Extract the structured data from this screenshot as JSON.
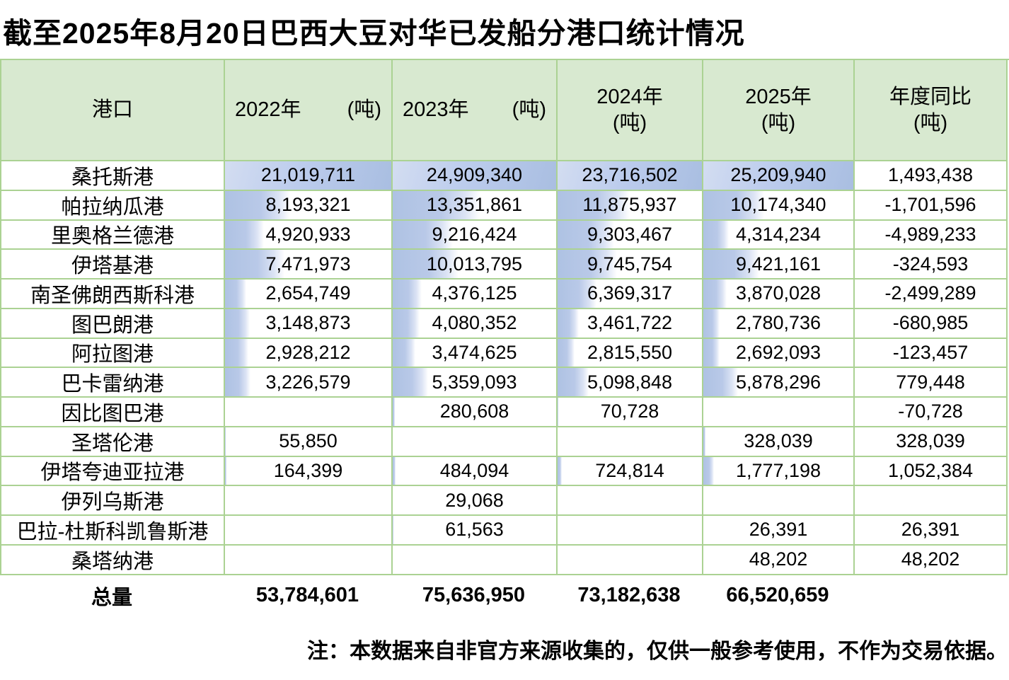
{
  "title": "截至2025年8月20日巴西大豆对华已发船分港口统计情况",
  "table": {
    "columns": [
      {
        "label": "港口"
      },
      {
        "year": "2022年",
        "unit": "(吨)",
        "layout": "inline"
      },
      {
        "year": "2023年",
        "unit": "(吨)",
        "layout": "inline"
      },
      {
        "year": "2024年",
        "unit": "(吨)",
        "layout": "stacked"
      },
      {
        "year": "2025年",
        "unit": "(吨)",
        "layout": "stacked"
      },
      {
        "year": "年度同比",
        "unit": "(吨)",
        "layout": "stacked"
      }
    ],
    "rows": [
      {
        "port": "桑托斯港",
        "values": [
          "21,019,711",
          "24,909,340",
          "23,716,502",
          "25,209,940",
          "1,493,438"
        ]
      },
      {
        "port": "帕拉纳瓜港",
        "values": [
          "8,193,321",
          "13,351,861",
          "11,875,937",
          "10,174,340",
          "-1,701,596"
        ]
      },
      {
        "port": "里奥格兰德港",
        "values": [
          "4,920,933",
          "9,216,424",
          "9,303,467",
          "4,314,234",
          "-4,989,233"
        ]
      },
      {
        "port": "伊塔基港",
        "values": [
          "7,471,973",
          "10,013,795",
          "9,745,754",
          "9,421,161",
          "-324,593"
        ]
      },
      {
        "port": "南圣佛朗西斯科港",
        "values": [
          "2,654,749",
          "4,376,125",
          "6,369,317",
          "3,870,028",
          "-2,499,289"
        ]
      },
      {
        "port": "图巴朗港",
        "values": [
          "3,148,873",
          "4,080,352",
          "3,461,722",
          "2,780,736",
          "-680,985"
        ]
      },
      {
        "port": "阿拉图港",
        "values": [
          "2,928,212",
          "3,474,625",
          "2,815,550",
          "2,692,093",
          "-123,457"
        ]
      },
      {
        "port": "巴卡雷纳港",
        "values": [
          "3,226,579",
          "5,359,093",
          "5,098,848",
          "5,878,296",
          "779,448"
        ]
      },
      {
        "port": "因比图巴港",
        "values": [
          "",
          "280,608",
          "70,728",
          "",
          "-70,728"
        ]
      },
      {
        "port": "圣塔伦港",
        "values": [
          "55,850",
          "",
          "",
          "328,039",
          "328,039"
        ]
      },
      {
        "port": "伊塔夸迪亚拉港",
        "values": [
          "164,399",
          "484,094",
          "724,814",
          "1,777,198",
          "1,052,384"
        ]
      },
      {
        "port": "伊列乌斯港",
        "values": [
          "",
          "29,068",
          "",
          "",
          ""
        ]
      },
      {
        "port": "巴拉-杜斯科凯鲁斯港",
        "values": [
          "",
          "61,563",
          "",
          "26,391",
          "26,391"
        ]
      },
      {
        "port": "桑塔纳港",
        "values": [
          "",
          "",
          "",
          "48,202",
          "48,202"
        ]
      }
    ],
    "totals": {
      "label": "总量",
      "values": [
        "53,784,601",
        "75,636,950",
        "73,182,638",
        "66,520,659",
        ""
      ]
    }
  },
  "note": "注：本数据来自非官方来源收集的，仅供一般参考使用，不作为交易依据。",
  "colors": {
    "header_bg": "#d8e9d0",
    "grid_line": "#abd293",
    "data_bar_blue": "#a9bee1",
    "data_bar_blue_light": "#d3ddf1"
  },
  "chart_data": {
    "type": "table",
    "title": "截至2025年8月20日巴西大豆对华已发船分港口统计情况",
    "columns": [
      "港口",
      "2022年(吨)",
      "2023年(吨)",
      "2024年(吨)",
      "2025年(吨)",
      "年度同比(吨)"
    ],
    "rows": [
      [
        "桑托斯港",
        21019711,
        24909340,
        23716502,
        25209940,
        1493438
      ],
      [
        "帕拉纳瓜港",
        8193321,
        13351861,
        11875937,
        10174340,
        -1701596
      ],
      [
        "里奥格兰德港",
        4920933,
        9216424,
        9303467,
        4314234,
        -4989233
      ],
      [
        "伊塔基港",
        7471973,
        10013795,
        9745754,
        9421161,
        -324593
      ],
      [
        "南圣佛朗西斯科港",
        2654749,
        4376125,
        6369317,
        3870028,
        -2499289
      ],
      [
        "图巴朗港",
        3148873,
        4080352,
        3461722,
        2780736,
        -680985
      ],
      [
        "阿拉图港",
        2928212,
        3474625,
        2815550,
        2692093,
        -123457
      ],
      [
        "巴卡雷纳港",
        3226579,
        5359093,
        5098848,
        5878296,
        779448
      ],
      [
        "因比图巴港",
        null,
        280608,
        70728,
        null,
        -70728
      ],
      [
        "圣塔伦港",
        55850,
        null,
        null,
        328039,
        328039
      ],
      [
        "伊塔夸迪亚拉港",
        164399,
        484094,
        724814,
        1777198,
        1052384
      ],
      [
        "伊列乌斯港",
        null,
        29068,
        null,
        null,
        null
      ],
      [
        "巴拉-杜斯科凯鲁斯港",
        null,
        61563,
        null,
        26391,
        26391
      ],
      [
        "桑塔纳港",
        null,
        null,
        null,
        48202,
        48202
      ]
    ],
    "totals": [
      "总量",
      53784601,
      75636950,
      73182638,
      66520659,
      null
    ],
    "annotations": [
      "注：本数据来自非官方来源收集的，仅供一般参考使用，不作为交易依据。"
    ],
    "layout_hints": "year columns 2022-2025 carry blue gradient data bars scaled from 0 to each column's max value; header row light green; grid lines light green"
  }
}
